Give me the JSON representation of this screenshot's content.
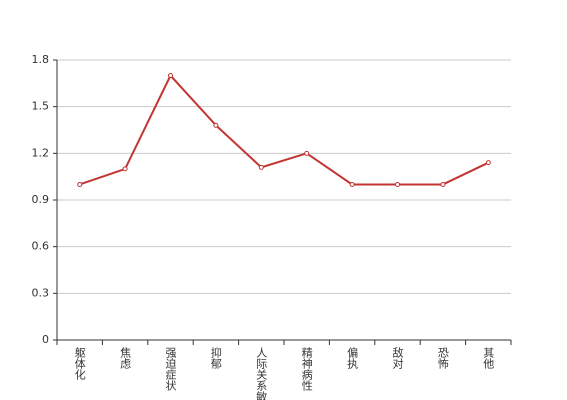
{
  "chart_data": {
    "type": "line",
    "categories": [
      "躯体化",
      "焦虑",
      "强迫症状",
      "抑郁",
      "人际关系敏感",
      "精神病性",
      "偏执",
      "敌对",
      "恐怖",
      "其他"
    ],
    "values": [
      1.0,
      1.1,
      1.7,
      1.38,
      1.11,
      1.2,
      1.0,
      1.0,
      1.0,
      1.14
    ],
    "color": "#c23531",
    "ylim": [
      0,
      1.8
    ],
    "yticks": [
      0,
      0.3,
      0.6,
      0.9,
      1.2,
      1.5,
      1.8
    ],
    "grid": true
  }
}
